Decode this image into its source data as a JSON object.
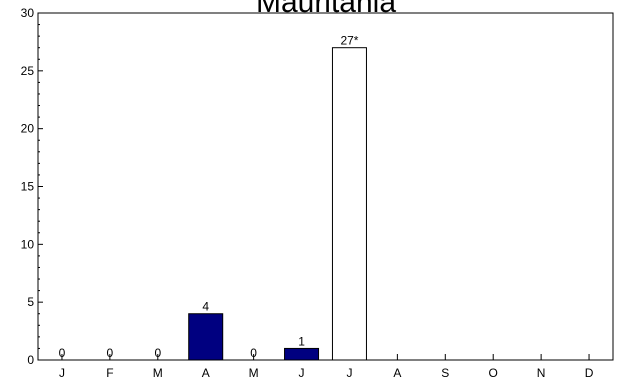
{
  "chart_data": {
    "type": "bar",
    "title": "Mauritania",
    "xlabel": "",
    "ylabel": "",
    "categories": [
      "J",
      "F",
      "M",
      "A",
      "M",
      "J",
      "J",
      "A",
      "S",
      "O",
      "N",
      "D"
    ],
    "values": [
      0,
      0,
      0,
      4,
      0,
      1,
      27,
      null,
      null,
      null,
      null,
      null
    ],
    "data_labels": [
      "0",
      "0",
      "0",
      "4",
      "0",
      "1",
      "27*",
      "",
      "",
      "",
      "",
      ""
    ],
    "bar_styles": [
      "filled",
      "filled",
      "filled",
      "filled",
      "filled",
      "filled",
      "outline",
      "",
      "",
      "",
      "",
      ""
    ],
    "ylim": [
      0,
      30
    ],
    "yticks": [
      0,
      5,
      10,
      15,
      20,
      25,
      30
    ],
    "grid": false,
    "legend": "none",
    "colors": {
      "fill": "#000080",
      "outline_fill": "#ffffff",
      "stroke": "#000000"
    }
  }
}
